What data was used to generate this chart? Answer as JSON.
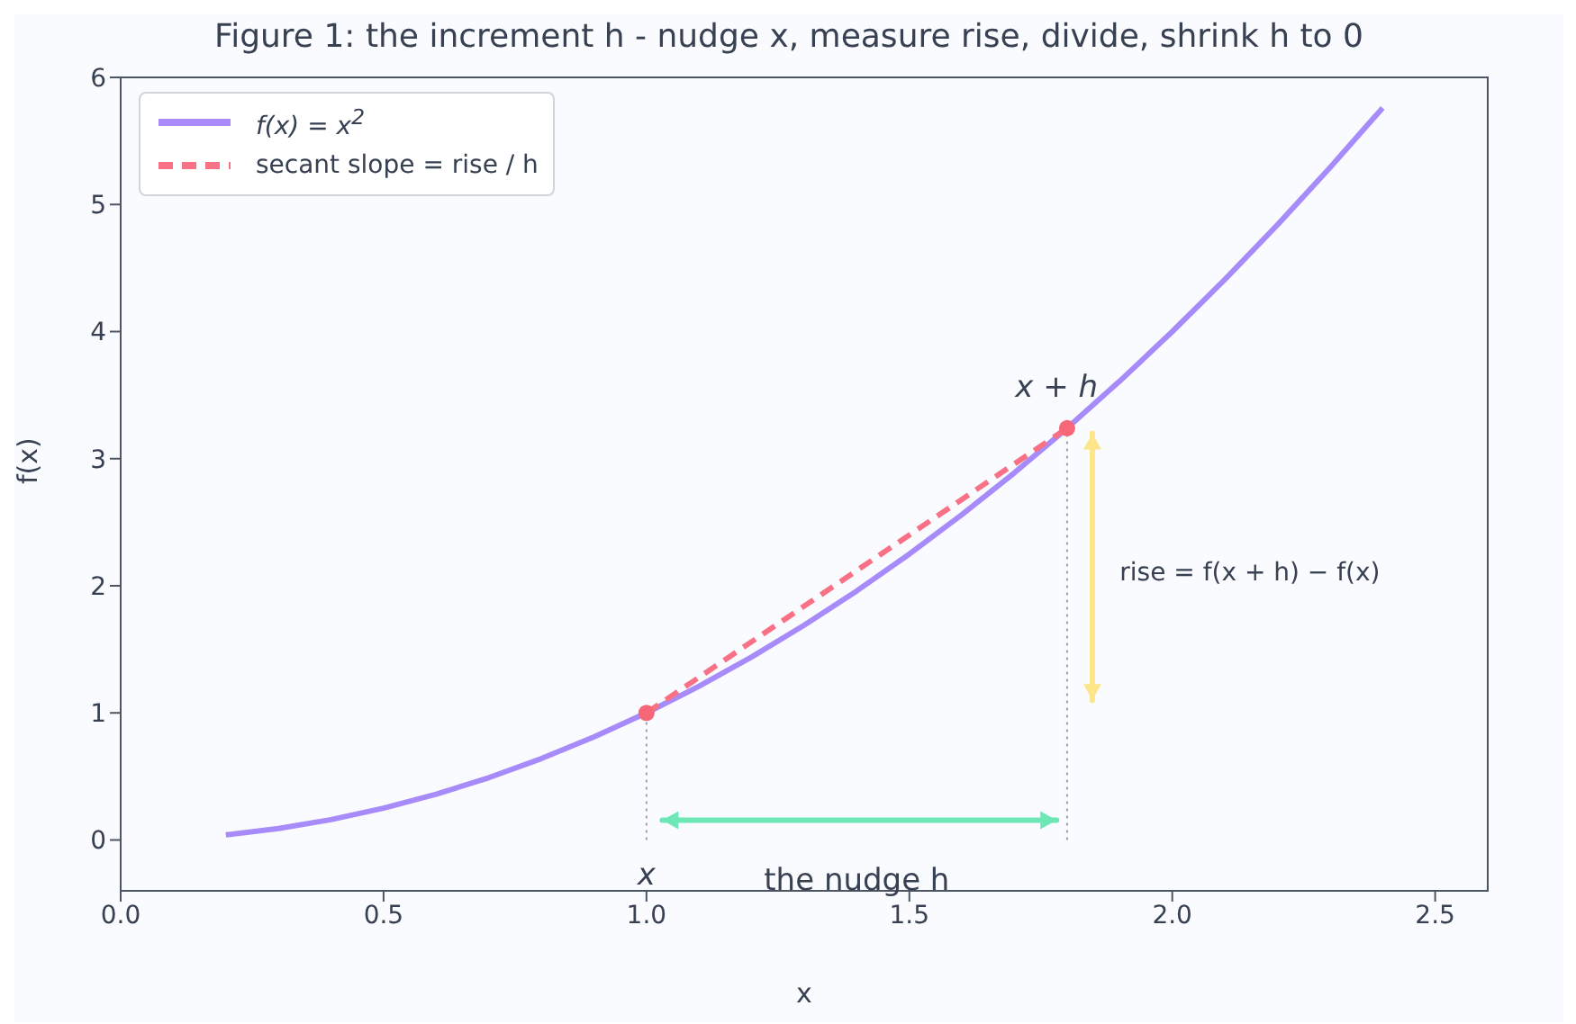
{
  "chart_data": {
    "type": "line",
    "title": "Figure 1: the increment h - nudge x, measure rise, divide, shrink h to 0",
    "xlabel": "x",
    "ylabel": "f(x)",
    "xlim": [
      0,
      2.6
    ],
    "xticks": [
      {
        "value": 0,
        "label": "0.0"
      },
      0.5,
      {
        "value": 1,
        "label": "1.0"
      },
      1.5,
      {
        "value": 2,
        "label": "2.0"
      },
      2.5
    ],
    "ylim": [
      -0.4,
      6
    ],
    "yticks": [
      0,
      1,
      2,
      3,
      4,
      5,
      6
    ],
    "grid": false,
    "legend": "top left",
    "series": [
      {
        "name": "f(x) = x$^{2}$",
        "color": "#a78bfa",
        "line_style": "solid",
        "x": [
          0.2,
          0.3,
          0.4,
          0.5,
          0.6,
          0.7,
          0.8,
          0.9,
          1.0,
          1.1,
          1.2,
          1.3,
          1.4,
          1.5,
          1.6,
          1.7,
          1.8,
          1.9,
          2.0,
          2.1,
          2.2,
          2.3,
          2.4
        ],
        "values": [
          0.04,
          0.09,
          0.16,
          0.25,
          0.36,
          0.49,
          0.64,
          0.81,
          1.0,
          1.21,
          1.44,
          1.69,
          1.96,
          2.25,
          2.56,
          2.89,
          3.24,
          3.61,
          4.0,
          4.41,
          4.84,
          5.29,
          5.76
        ]
      },
      {
        "name": "secant slope = rise / h",
        "color": "#f87185",
        "line_style": "dashed",
        "x": [
          1.0,
          1.8
        ],
        "values": [
          1.0,
          3.24
        ]
      },
      {
        "color": "#9ca3af",
        "line_style": "dotted",
        "x": [
          1.0,
          1.0
        ],
        "values": [
          0,
          1.0
        ]
      },
      {
        "color": "#9ca3af",
        "line_style": "dotted",
        "x": [
          1.8,
          1.8
        ],
        "values": [
          0,
          3.24
        ]
      },
      {
        "type": "scatter",
        "color": "#f7677a",
        "marker": "circle",
        "x": [
          1.0,
          1.8
        ],
        "values": [
          1.0,
          3.24
        ]
      }
    ],
    "annotations": [
      "x",
      "x + h",
      "the nudge  h",
      "rise  = f(x + h) − f(x)"
    ]
  }
}
